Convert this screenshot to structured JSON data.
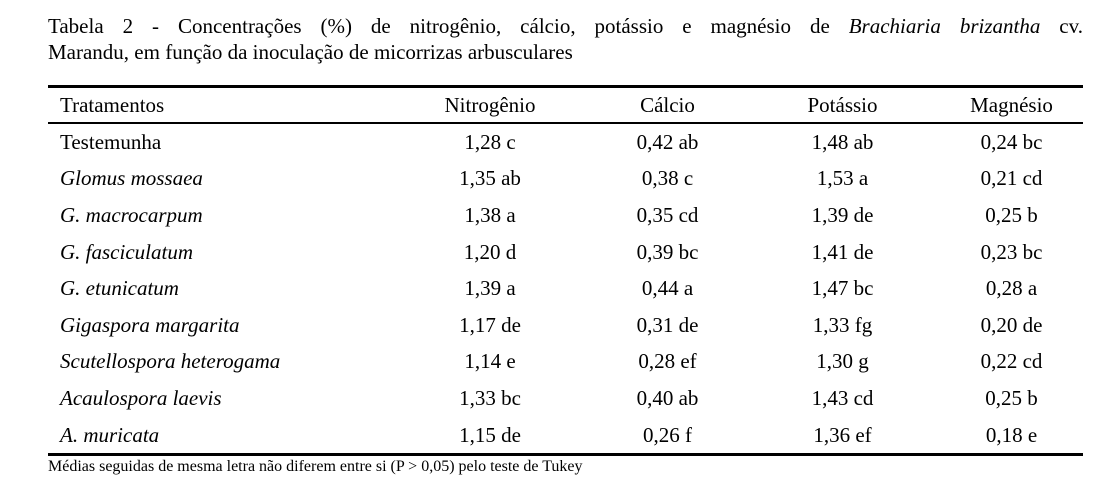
{
  "caption": {
    "part1": "Tabela 2 - Concentrações (%) de nitrogênio, cálcio, potássio e magnésio de ",
    "species": "Brachiaria brizantha",
    "part2": " cv.",
    "line2": "Marandu, em função da inoculação de micorrizas arbusculares"
  },
  "table": {
    "headers": [
      "Tratamentos",
      "Nitrogênio",
      "Cálcio",
      "Potássio",
      "Magnésio"
    ],
    "rows": [
      {
        "name": "Testemunha",
        "italic": false,
        "values": [
          "1,28 c",
          "0,42 ab",
          "1,48 ab",
          "0,24 bc"
        ]
      },
      {
        "name": "Glomus mossaea",
        "italic": true,
        "values": [
          "1,35 ab",
          "0,38 c",
          "1,53 a",
          "0,21 cd"
        ]
      },
      {
        "name": "G. macrocarpum",
        "italic": true,
        "values": [
          "1,38 a",
          "0,35 cd",
          "1,39 de",
          "0,25 b"
        ]
      },
      {
        "name": "G. fasciculatum",
        "italic": true,
        "values": [
          "1,20 d",
          "0,39 bc",
          "1,41 de",
          "0,23 bc"
        ]
      },
      {
        "name": "G. etunicatum",
        "italic": true,
        "values": [
          "1,39 a",
          "0,44 a",
          "1,47 bc",
          "0,28 a"
        ]
      },
      {
        "name": "Gigaspora margarita",
        "italic": true,
        "values": [
          "1,17 de",
          "0,31 de",
          "1,33 fg",
          "0,20 de"
        ]
      },
      {
        "name": "Scutellospora heterogama",
        "italic": true,
        "values": [
          "1,14 e",
          "0,28 ef",
          "1,30 g",
          "0,22 cd"
        ]
      },
      {
        "name": "Acaulospora laevis",
        "italic": true,
        "values": [
          "1,33 bc",
          "0,40 ab",
          "1,43 cd",
          "0,25 b"
        ]
      },
      {
        "name": "A. muricata",
        "italic": true,
        "values": [
          "1,15 de",
          "0,26 f",
          "1,36 ef",
          "0,18 e"
        ]
      }
    ]
  },
  "footnote": "Médias seguidas de mesma letra não diferem entre si (P > 0,05) pelo teste de Tukey"
}
